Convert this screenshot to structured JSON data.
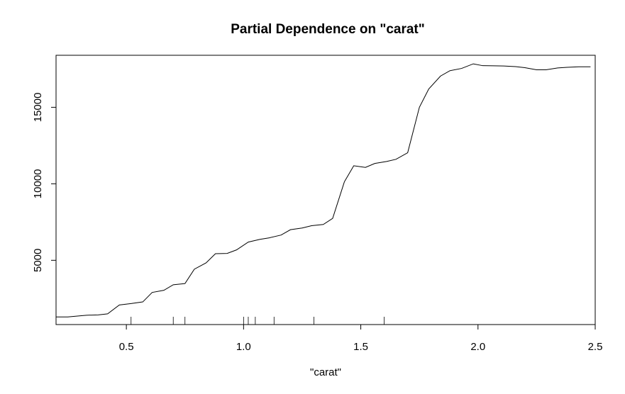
{
  "chart_data": {
    "type": "line",
    "title": "Partial Dependence on \"carat\"",
    "xlabel": "\"carat\"",
    "ylabel": "",
    "xlim": [
      0.2,
      2.5
    ],
    "ylim": [
      800,
      18400
    ],
    "x_ticks": [
      0.5,
      1.0,
      1.5,
      2.0,
      2.5
    ],
    "x_tick_labels": [
      "0.5",
      "1.0",
      "1.5",
      "2.0",
      "2.5"
    ],
    "y_ticks": [
      5000,
      10000,
      15000
    ],
    "y_tick_labels": [
      "5000",
      "10000",
      "15000"
    ],
    "grid": false,
    "legend": "none",
    "line_color": "#000000",
    "series": [
      {
        "x": [
          0.2,
          0.25,
          0.3,
          0.33,
          0.38,
          0.42,
          0.47,
          0.52,
          0.57,
          0.61,
          0.66,
          0.7,
          0.75,
          0.79,
          0.84,
          0.88,
          0.93,
          0.97,
          1.02,
          1.07,
          1.11,
          1.16,
          1.2,
          1.25,
          1.29,
          1.34,
          1.38,
          1.43,
          1.47,
          1.52,
          1.56,
          1.61,
          1.65,
          1.7,
          1.75,
          1.79,
          1.84,
          1.88,
          1.93,
          1.98,
          2.02,
          2.07,
          2.11,
          2.16,
          2.2,
          2.25,
          2.29,
          2.34,
          2.38,
          2.43,
          2.48
        ],
        "y": [
          1300,
          1300,
          1370,
          1410,
          1430,
          1500,
          2080,
          2170,
          2280,
          2900,
          3040,
          3400,
          3480,
          4420,
          4830,
          5430,
          5450,
          5680,
          6190,
          6370,
          6470,
          6650,
          7000,
          7110,
          7260,
          7340,
          7740,
          10130,
          11180,
          11070,
          11330,
          11460,
          11600,
          12030,
          15000,
          16200,
          17040,
          17390,
          17540,
          17840,
          17720,
          17710,
          17700,
          17660,
          17590,
          17450,
          17450,
          17570,
          17610,
          17650,
          17650
        ]
      }
    ],
    "rug": [
      0.52,
      0.7,
      0.75,
      1.0,
      1.02,
      1.05,
      1.13,
      1.3,
      1.6
    ]
  }
}
